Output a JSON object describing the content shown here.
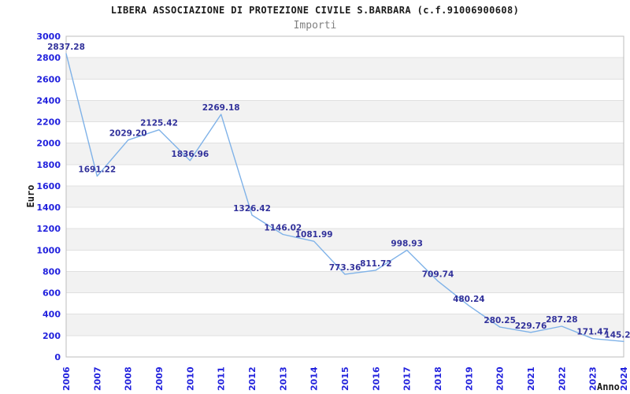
{
  "header": {
    "title": "LIBERA ASSOCIAZIONE DI PROTEZIONE CIVILE S.BARBARA (c.f.91006900608)",
    "subtitle": "Importi"
  },
  "chart_data": {
    "type": "line",
    "title": "Importi",
    "xlabel": "Anno",
    "ylabel": "Euro",
    "x": [
      2006,
      2007,
      2008,
      2009,
      2010,
      2011,
      2012,
      2013,
      2014,
      2015,
      2016,
      2017,
      2018,
      2019,
      2020,
      2021,
      2022,
      2023,
      2024
    ],
    "values": [
      2837.28,
      1691.22,
      2029.2,
      2125.42,
      1836.96,
      2269.18,
      1326.42,
      1146.02,
      1081.99,
      773.36,
      811.72,
      998.93,
      709.74,
      480.24,
      280.25,
      229.76,
      287.28,
      171.47,
      145.2
    ],
    "point_labels": [
      "2837.28",
      "1691.22",
      "2029.20",
      "2125.42",
      "1836.96",
      "2269.18",
      "1326.42",
      "1146.02",
      "1081.99",
      "773.36",
      "811.72",
      "998.93",
      "709.74",
      "480.24",
      "280.25",
      "229.76",
      "287.28",
      "171.47",
      "145.2"
    ],
    "ylim": [
      0,
      3000
    ],
    "ytick_step": 200,
    "legend": "none",
    "grid": "horizontal-alternating-bands",
    "colors": {
      "line": "#7fb2e8",
      "band": "#f2f2f2",
      "gridline": "#e0e0e0",
      "frame": "#bdbdbd",
      "axis_text": "#2222dd",
      "point_label": "#32329b",
      "title": "#1a1a1a",
      "subtitle": "#808080",
      "axis_title": "#1a1a1a"
    }
  }
}
